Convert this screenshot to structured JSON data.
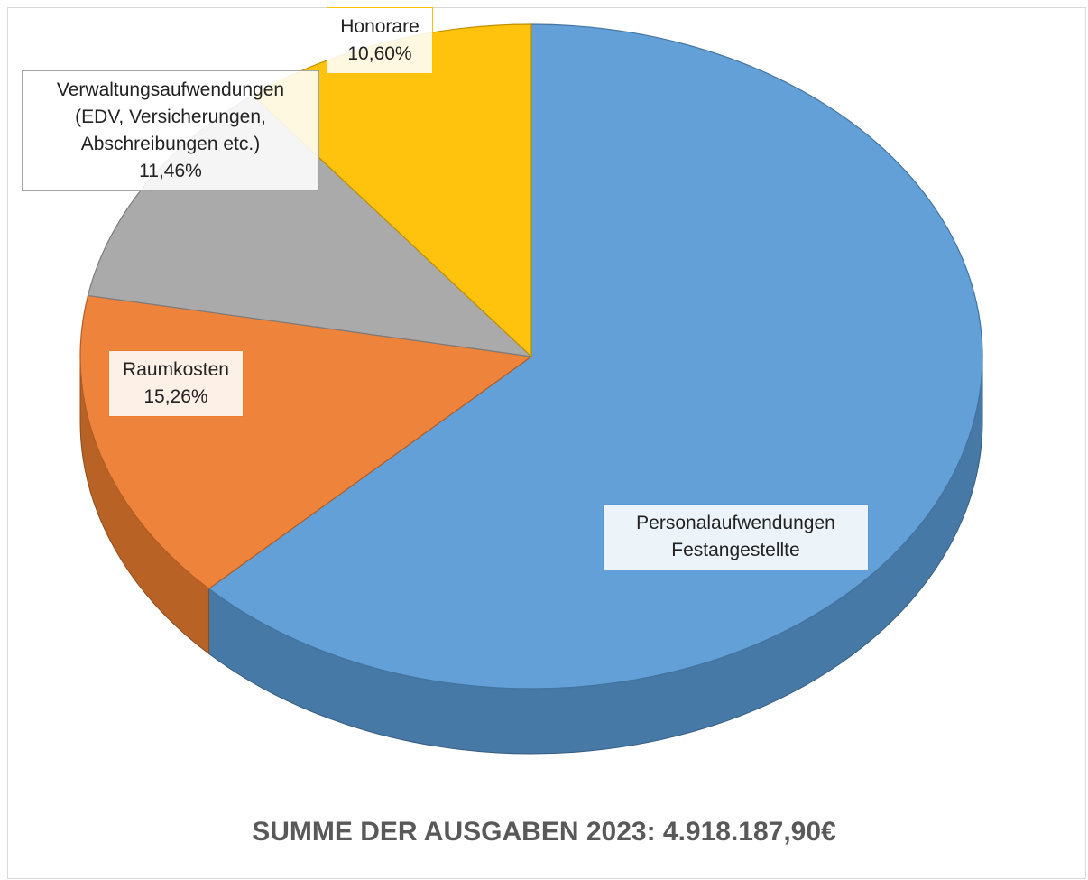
{
  "chart_data": {
    "type": "pie3d",
    "title": "SUMME DER AUSGABEN 2023: 4.918.187,90€",
    "categories": [
      "Personalaufwendungen Festangestellte",
      "Raumkosten",
      "Verwaltungsaufwendungen (EDV, Versicherungen, Abschreibungen etc.)",
      "Honorare"
    ],
    "values": [
      62.68,
      15.26,
      11.46,
      10.6
    ],
    "value_labels": [
      null,
      "15,26%",
      "11,46%",
      "10,60%"
    ],
    "colors": [
      "#5b9bd5",
      "#ed7d31",
      "#a5a5a5",
      "#ffc000"
    ]
  }
}
